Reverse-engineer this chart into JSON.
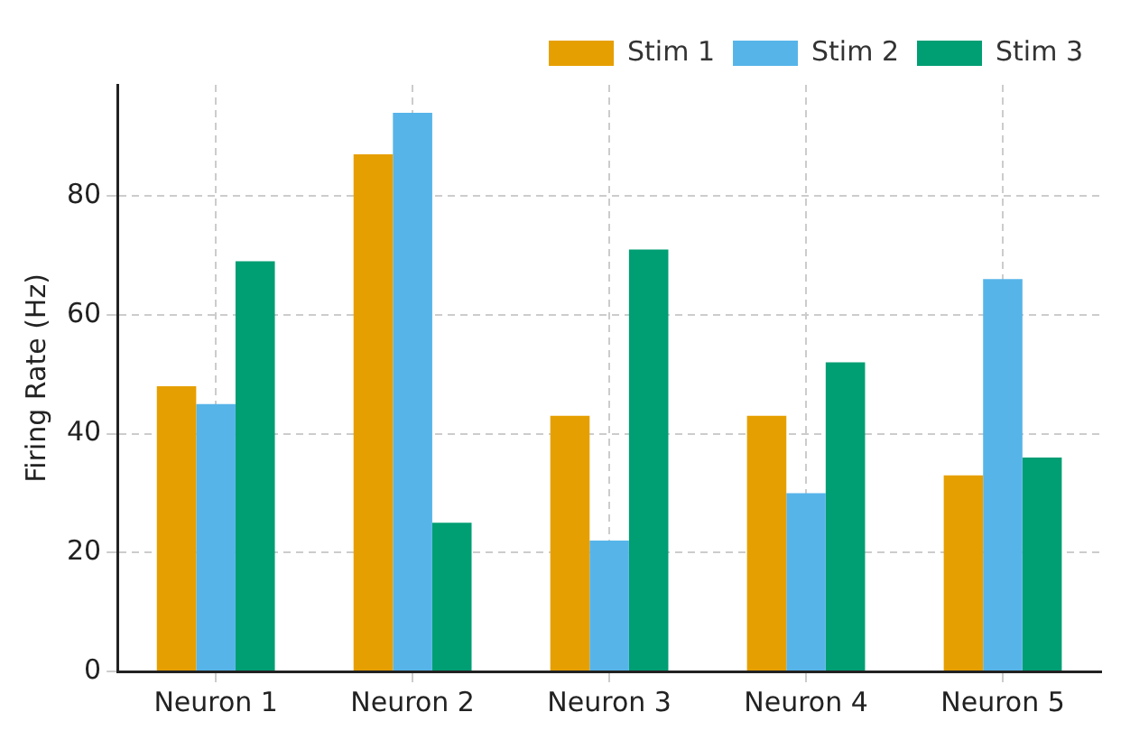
{
  "chart_data": {
    "type": "bar",
    "ylabel": "Firing Rate (Hz)",
    "categories": [
      "Neuron 1",
      "Neuron 2",
      "Neuron 3",
      "Neuron 4",
      "Neuron 5"
    ],
    "series": [
      {
        "name": "Stim 1",
        "color": "#e69f00",
        "values": [
          48,
          87,
          43,
          43,
          33
        ]
      },
      {
        "name": "Stim 2",
        "color": "#56b4e9",
        "values": [
          45,
          94,
          22,
          30,
          66
        ]
      },
      {
        "name": "Stim 3",
        "color": "#009e73",
        "values": [
          69,
          25,
          71,
          52,
          36
        ]
      }
    ],
    "ylim": [
      0,
      98.7
    ],
    "yticks": [
      0,
      20,
      40,
      60,
      80
    ],
    "grid": true,
    "legend": "top right"
  }
}
